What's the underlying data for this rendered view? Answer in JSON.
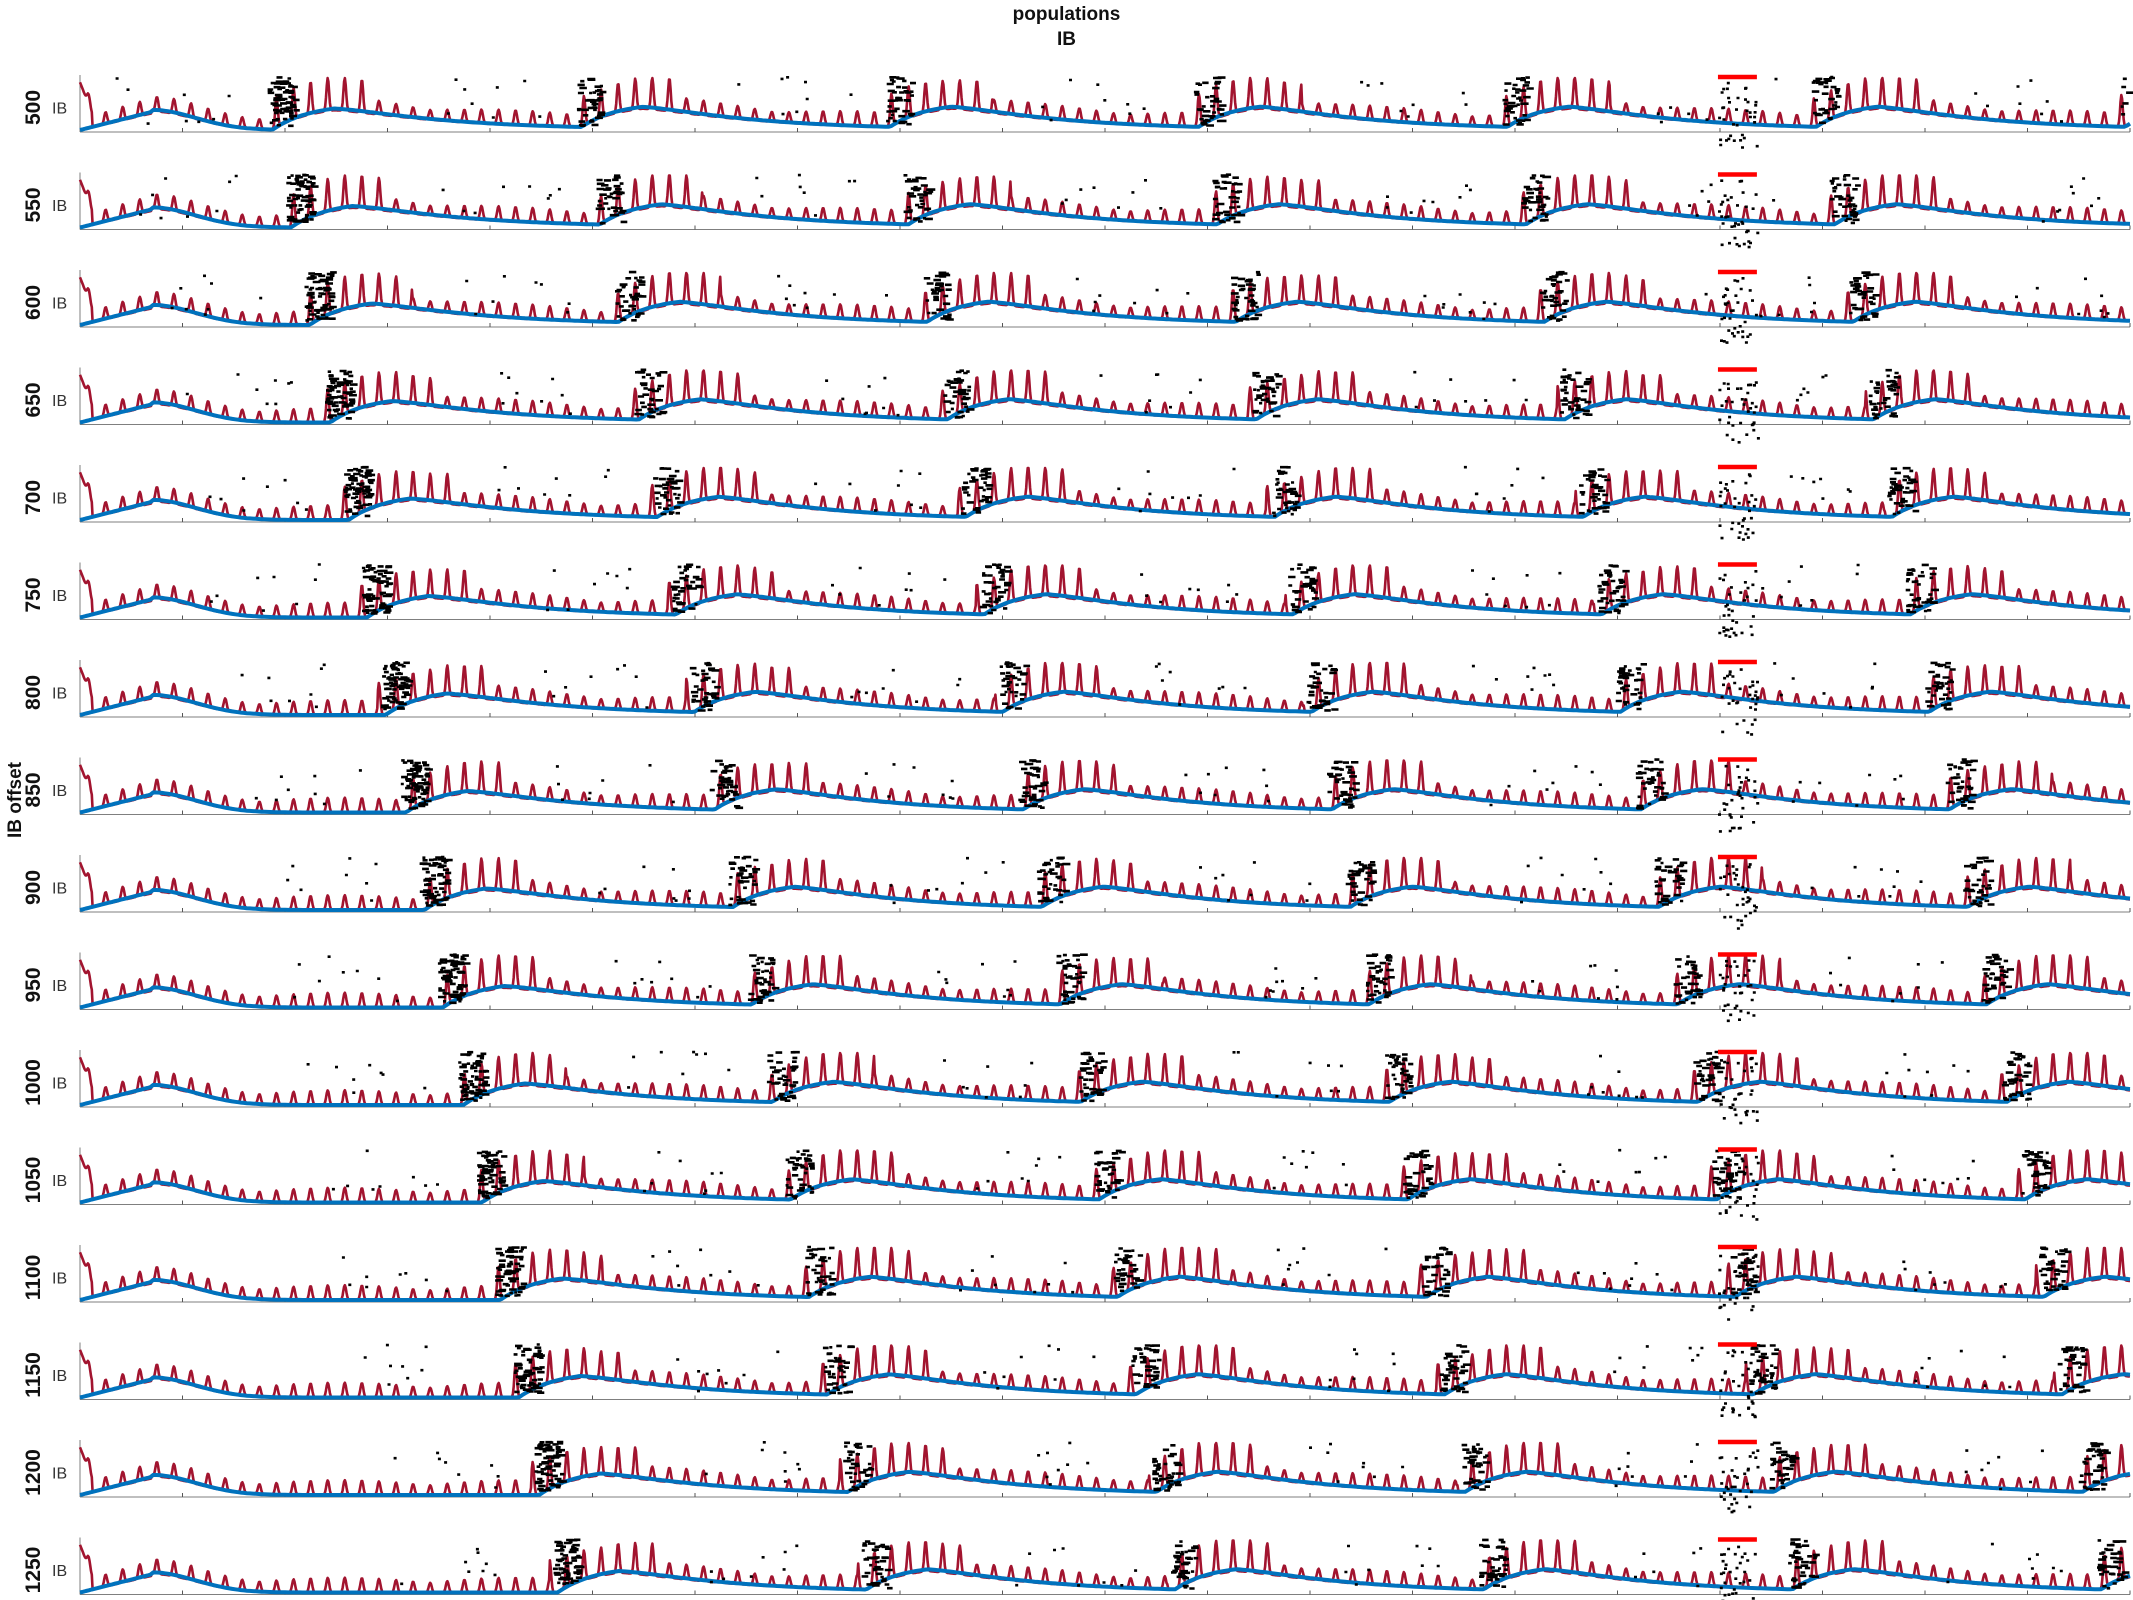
{
  "figure": {
    "title_line1": "populations",
    "title_line2": "IB",
    "ylabel": "IB offset"
  },
  "chart_data": {
    "type": "line",
    "title": "populations IB",
    "ylabel": "IB offset",
    "panel_label": "IB",
    "rows": [
      "500",
      "550",
      "600",
      "650",
      "700",
      "750",
      "800",
      "850",
      "900",
      "950",
      "1000",
      "1050",
      "1100",
      "1150",
      "1200",
      "1250"
    ],
    "onset_fraction": [
      0.094,
      0.103,
      0.112,
      0.122,
      0.131,
      0.14,
      0.149,
      0.159,
      0.168,
      0.177,
      0.187,
      0.196,
      0.205,
      0.214,
      0.224,
      0.233
    ],
    "series": [
      {
        "name": "",
        "color": "#a2142f",
        "style": "spiking trace"
      },
      {
        "name": "",
        "color": "#0072bd",
        "style": "smooth slow trace"
      },
      {
        "name": "",
        "color": "#000000",
        "style": "raster"
      },
      {
        "name": "",
        "color": "#ff0000",
        "style": "marker bar"
      }
    ],
    "red_marker_fraction": [
      0.799,
      0.818
    ],
    "grid": false
  }
}
